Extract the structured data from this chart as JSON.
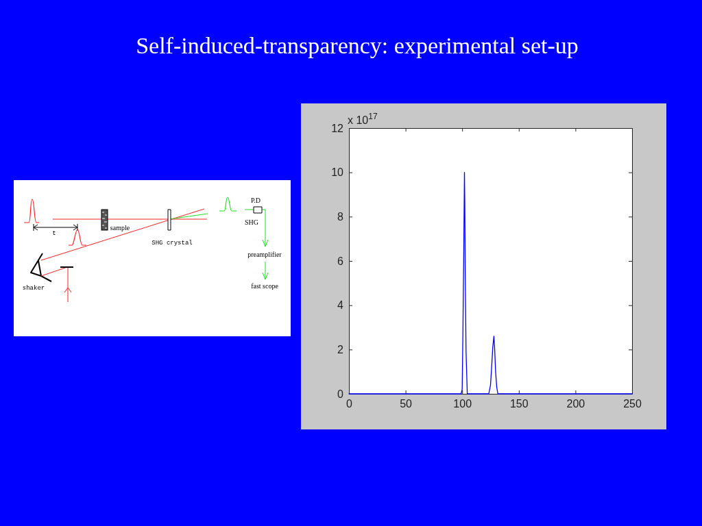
{
  "chart_data": [
    {
      "type": "other",
      "title": "Self-induced-transparency: experimental set-up",
      "annotations": [
        "P.D",
        "SHG",
        "sample",
        "t",
        "SHG crystal",
        "preamplifier",
        "shaker",
        "fast scope"
      ]
    },
    {
      "type": "line",
      "ylabel": "x 10$^{17}$",
      "x": [
        0,
        93,
        99,
        100,
        100.6,
        101.3,
        102,
        102.3,
        102.7,
        103.4,
        104.5,
        123.5,
        125,
        126,
        127,
        128,
        128.7,
        129.5,
        130.5,
        131.5,
        250
      ],
      "series": [
        {
          "color": "#0000ff",
          "values": [
            0,
            0,
            0,
            0.2,
            2.6,
            6,
            10,
            8.6,
            5.4,
            1.9,
            0,
            0,
            0.4,
            1.2,
            2.1,
            2.6,
            2.0,
            1.0,
            0.3,
            0,
            0
          ]
        }
      ],
      "xlim": [
        0,
        250
      ],
      "xticks": [
        0,
        50,
        100,
        150,
        200,
        250
      ],
      "ylim": [
        0,
        12
      ],
      "yticks": [
        0,
        2,
        4,
        6,
        8,
        10,
        12
      ]
    }
  ]
}
